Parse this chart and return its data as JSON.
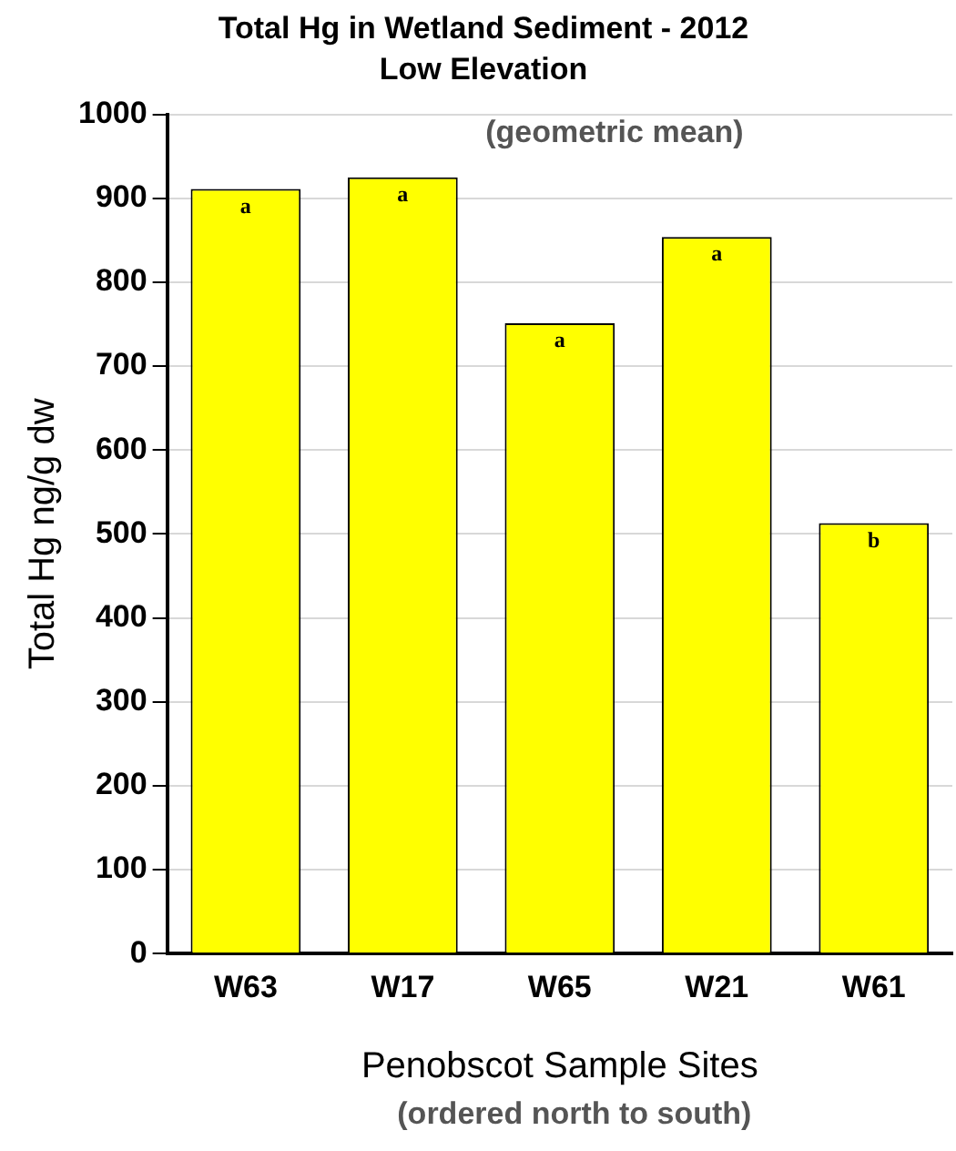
{
  "chart_data": {
    "type": "bar",
    "title": "Total Hg in Wetland Sediment - 2012",
    "subtitle": "Low Elevation",
    "xlabel": "Penobscot Sample Sites",
    "ylabel": "Total Hg ng/g dw",
    "categories": [
      "W63",
      "W17",
      "W65",
      "W21",
      "W61"
    ],
    "values": [
      911,
      925,
      751,
      854,
      513
    ],
    "color": "#ffff00",
    "ylim": [
      0,
      1000
    ],
    "yticks": [
      0,
      100,
      200,
      300,
      400,
      500,
      600,
      700,
      800,
      900,
      1000
    ],
    "grid": "y",
    "legend": false,
    "annotations": [
      "(geometric mean)",
      "(ordered north to south)",
      {
        "text": "a",
        "x": "W63",
        "y": 911
      },
      {
        "text": "a",
        "x": "W17",
        "y": 925
      },
      {
        "text": "a",
        "x": "W65",
        "y": 751
      },
      {
        "text": "a",
        "x": "W21",
        "y": 854
      },
      {
        "text": "b",
        "x": "W61",
        "y": 513
      }
    ]
  }
}
